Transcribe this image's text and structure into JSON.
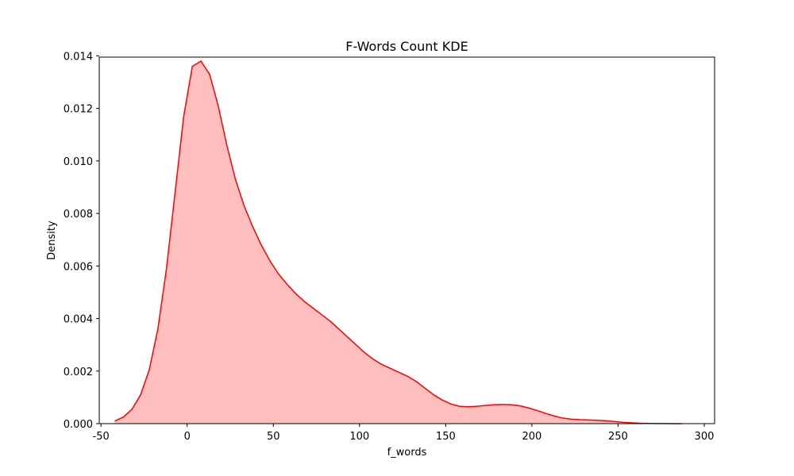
{
  "chart_data": {
    "type": "area",
    "title": "F-Words Count KDE",
    "xlabel": "f_words",
    "ylabel": "Density",
    "xlim": [
      -51,
      306
    ],
    "ylim": [
      0,
      0.01395
    ],
    "xticks": [
      -50,
      0,
      50,
      100,
      150,
      200,
      250,
      300
    ],
    "yticks": [
      0.0,
      0.002,
      0.004,
      0.006,
      0.008,
      0.01,
      0.012,
      0.014
    ],
    "ytick_labels": [
      "0.000",
      "0.002",
      "0.004",
      "0.006",
      "0.008",
      "0.010",
      "0.012",
      "0.014"
    ],
    "grid": false,
    "colors": {
      "line": "#ff0000",
      "fill": "#ffbfbf"
    },
    "series": [
      {
        "x": [
          -42,
          -37,
          -32,
          -27,
          -22,
          -17,
          -12,
          -7,
          -2,
          3,
          8,
          13,
          18,
          23,
          28,
          33,
          38,
          43,
          48,
          53,
          58,
          63,
          68,
          73,
          78,
          83,
          88,
          93,
          98,
          103,
          108,
          113,
          118,
          123,
          128,
          133,
          138,
          143,
          148,
          153,
          158,
          163,
          168,
          173,
          178,
          183,
          188,
          193,
          198,
          203,
          208,
          213,
          218,
          223,
          228,
          233,
          238,
          243,
          248,
          253,
          258,
          263,
          268,
          273,
          278,
          283,
          287
        ],
        "y": [
          0.0001,
          0.00025,
          0.00055,
          0.0011,
          0.00205,
          0.0036,
          0.0059,
          0.0088,
          0.0117,
          0.0136,
          0.0138,
          0.0133,
          0.0121,
          0.0106,
          0.0093,
          0.0083,
          0.0075,
          0.0068,
          0.0062,
          0.0057,
          0.0053,
          0.00495,
          0.00465,
          0.0044,
          0.00415,
          0.0039,
          0.0036,
          0.0033,
          0.003,
          0.0027,
          0.00245,
          0.00225,
          0.0021,
          0.00195,
          0.0018,
          0.0016,
          0.00135,
          0.0011,
          0.0009,
          0.00075,
          0.00066,
          0.00064,
          0.00066,
          0.00069,
          0.00072,
          0.00073,
          0.00072,
          0.00068,
          0.0006,
          0.0005,
          0.00039,
          0.00029,
          0.00021,
          0.00017,
          0.00015,
          0.00014,
          0.00013,
          0.00011,
          8e-05,
          5e-05,
          3e-05,
          1.5e-05,
          8e-06,
          4e-06,
          2e-06,
          1e-06,
          5e-07
        ]
      }
    ]
  }
}
